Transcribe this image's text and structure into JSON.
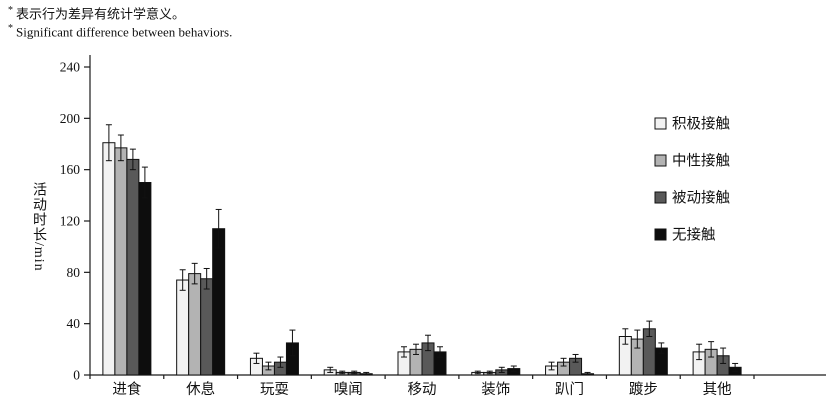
{
  "notes": {
    "zh": {
      "star": "*",
      "text": "表示行为差异有统计学意义。"
    },
    "en": {
      "star": "*",
      "text": "Significant difference between behaviors."
    }
  },
  "chart_data": {
    "type": "bar",
    "title": "",
    "xlabel": "",
    "ylabel": "活动时长/min",
    "ylim": [
      0,
      240
    ],
    "ytick_step": 40,
    "grid": false,
    "legend_position": "right-inside",
    "axis_color": "#1a1a1a",
    "error_bar_color": "#111111",
    "categories": [
      "进食",
      "休息",
      "玩耍",
      "嗅闻",
      "移动",
      "装饰",
      "趴门",
      "踱步",
      "其他"
    ],
    "series": [
      {
        "name": "积极接触",
        "color": "#f2f2f2",
        "values": [
          181,
          74,
          13,
          4,
          18,
          2,
          7,
          30,
          18
        ],
        "errors": [
          14,
          8,
          4,
          2,
          4,
          1,
          3,
          6,
          6
        ]
      },
      {
        "name": "中性接触",
        "color": "#b3b3b3",
        "values": [
          177,
          79,
          7,
          2,
          20,
          2,
          10,
          28,
          20
        ],
        "errors": [
          10,
          8,
          3,
          1,
          4,
          1,
          3,
          7,
          6
        ]
      },
      {
        "name": "被动接触",
        "color": "#595959",
        "values": [
          168,
          75,
          10,
          2,
          25,
          4,
          13,
          36,
          15
        ],
        "errors": [
          8,
          8,
          4,
          1,
          6,
          2,
          3,
          6,
          6
        ]
      },
      {
        "name": "无接触",
        "color": "#0d0d0d",
        "values": [
          150,
          114,
          25,
          1,
          18,
          5,
          1,
          21,
          6
        ],
        "errors": [
          12,
          15,
          10,
          1,
          4,
          2,
          1,
          4,
          3
        ]
      }
    ]
  }
}
